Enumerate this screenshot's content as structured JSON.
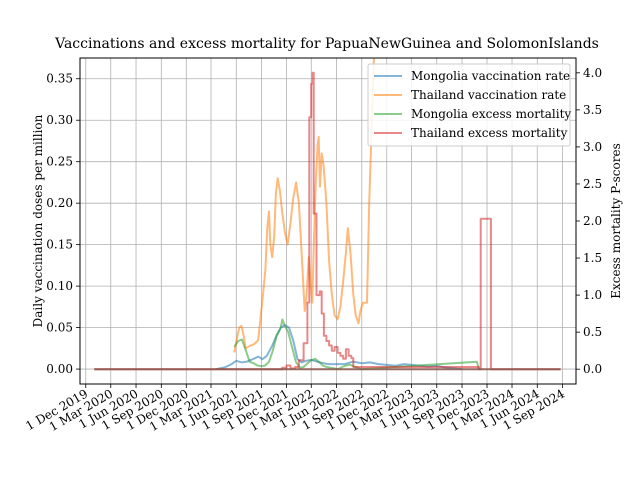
{
  "chart_data": {
    "type": "line",
    "title": "Vaccinations and excess mortality for PapuaNewGuinea and SolomonIslands",
    "ylabel_left": "Daily vaccination doses per million",
    "ylabel_right": "Excess mortality P-scores",
    "ylim_left": [
      -0.018,
      0.375
    ],
    "ylim_right": [
      -0.2,
      4.2
    ],
    "xlim": [
      "2019-11-10",
      "2024-10-20"
    ],
    "grid": true,
    "legend_position": "top-right",
    "x_ticks": [
      {
        "date": "2019-12-01",
        "label": "1 Dec 2019"
      },
      {
        "date": "2020-03-01",
        "label": "1 Mar 2020"
      },
      {
        "date": "2020-06-01",
        "label": "1 Jun 2020"
      },
      {
        "date": "2020-09-01",
        "label": "1 Sep 2020"
      },
      {
        "date": "2020-12-01",
        "label": "1 Dec 2020"
      },
      {
        "date": "2021-03-01",
        "label": "1 Mar 2021"
      },
      {
        "date": "2021-06-01",
        "label": "1 Jun 2021"
      },
      {
        "date": "2021-09-01",
        "label": "1 Sep 2021"
      },
      {
        "date": "2021-12-01",
        "label": "1 Dec 2021"
      },
      {
        "date": "2022-03-01",
        "label": "1 Mar 2022"
      },
      {
        "date": "2022-06-01",
        "label": "1 Jun 2022"
      },
      {
        "date": "2022-09-01",
        "label": "1 Sep 2022"
      },
      {
        "date": "2022-12-01",
        "label": "1 Dec 2022"
      },
      {
        "date": "2023-03-01",
        "label": "1 Mar 2023"
      },
      {
        "date": "2023-06-01",
        "label": "1 Jun 2023"
      },
      {
        "date": "2023-09-01",
        "label": "1 Sep 2023"
      },
      {
        "date": "2023-12-01",
        "label": "1 Dec 2023"
      },
      {
        "date": "2024-03-01",
        "label": "1 Mar 2024"
      },
      {
        "date": "2024-06-01",
        "label": "1 Jun 2024"
      },
      {
        "date": "2024-09-01",
        "label": "1 Sep 2024"
      }
    ],
    "y_ticks_left": [
      {
        "value": 0.0,
        "label": "0.00"
      },
      {
        "value": 0.05,
        "label": "0.05"
      },
      {
        "value": 0.1,
        "label": "0.10"
      },
      {
        "value": 0.15,
        "label": "0.15"
      },
      {
        "value": 0.2,
        "label": "0.20"
      },
      {
        "value": 0.25,
        "label": "0.25"
      },
      {
        "value": 0.3,
        "label": "0.30"
      },
      {
        "value": 0.35,
        "label": "0.35"
      }
    ],
    "y_ticks_right": [
      {
        "value": 0.0,
        "label": "0.0"
      },
      {
        "value": 0.5,
        "label": "0.5"
      },
      {
        "value": 1.0,
        "label": "1.0"
      },
      {
        "value": 1.5,
        "label": "1.5"
      },
      {
        "value": 2.0,
        "label": "2.0"
      },
      {
        "value": 2.5,
        "label": "2.5"
      },
      {
        "value": 3.0,
        "label": "3.0"
      },
      {
        "value": 3.5,
        "label": "3.5"
      },
      {
        "value": 4.0,
        "label": "4.0"
      }
    ],
    "series": [
      {
        "name": "Mongolia vaccination rate",
        "axis": "left",
        "color": "#1f77b4",
        "points": [
          [
            "2021-03-20",
            0.0
          ],
          [
            "2021-04-20",
            0.002
          ],
          [
            "2021-05-15",
            0.006
          ],
          [
            "2021-06-01",
            0.01
          ],
          [
            "2021-06-20",
            0.008
          ],
          [
            "2021-07-10",
            0.009
          ],
          [
            "2021-08-01",
            0.012
          ],
          [
            "2021-08-20",
            0.015
          ],
          [
            "2021-09-05",
            0.012
          ],
          [
            "2021-09-20",
            0.016
          ],
          [
            "2021-10-10",
            0.028
          ],
          [
            "2021-10-25",
            0.04
          ],
          [
            "2021-11-10",
            0.05
          ],
          [
            "2021-11-25",
            0.053
          ],
          [
            "2021-12-10",
            0.05
          ],
          [
            "2021-12-25",
            0.035
          ],
          [
            "2022-01-10",
            0.012
          ],
          [
            "2022-01-25",
            0.008
          ],
          [
            "2022-02-10",
            0.01
          ],
          [
            "2022-03-01",
            0.011
          ],
          [
            "2022-04-01",
            0.008
          ],
          [
            "2022-05-01",
            0.006
          ],
          [
            "2022-06-01",
            0.006
          ],
          [
            "2022-07-01",
            0.006
          ],
          [
            "2022-08-01",
            0.009
          ],
          [
            "2022-09-01",
            0.007
          ],
          [
            "2022-10-01",
            0.008
          ],
          [
            "2022-11-01",
            0.006
          ],
          [
            "2022-12-01",
            0.005
          ],
          [
            "2023-01-01",
            0.004
          ],
          [
            "2023-02-01",
            0.006
          ],
          [
            "2023-03-01",
            0.005
          ],
          [
            "2023-04-01",
            0.004
          ],
          [
            "2023-05-01",
            0.003
          ],
          [
            "2023-06-01",
            0.004
          ],
          [
            "2023-07-01",
            0.002
          ],
          [
            "2023-08-01",
            0.001
          ],
          [
            "2023-09-01",
            0.0
          ]
        ]
      },
      {
        "name": "Thailand vaccination rate",
        "axis": "left",
        "color": "#ff7f0e",
        "points": [
          [
            "2021-05-25",
            0.02
          ],
          [
            "2021-06-05",
            0.04
          ],
          [
            "2021-06-12",
            0.05
          ],
          [
            "2021-06-20",
            0.052
          ],
          [
            "2021-06-28",
            0.04
          ],
          [
            "2021-07-05",
            0.025
          ],
          [
            "2021-07-20",
            0.028
          ],
          [
            "2021-08-05",
            0.03
          ],
          [
            "2021-08-20",
            0.035
          ],
          [
            "2021-09-05",
            0.085
          ],
          [
            "2021-09-15",
            0.12
          ],
          [
            "2021-09-22",
            0.17
          ],
          [
            "2021-09-28",
            0.19
          ],
          [
            "2021-10-03",
            0.15
          ],
          [
            "2021-10-10",
            0.135
          ],
          [
            "2021-10-17",
            0.16
          ],
          [
            "2021-10-23",
            0.21
          ],
          [
            "2021-10-30",
            0.23
          ],
          [
            "2021-11-07",
            0.215
          ],
          [
            "2021-11-15",
            0.19
          ],
          [
            "2021-11-25",
            0.165
          ],
          [
            "2021-12-05",
            0.15
          ],
          [
            "2021-12-15",
            0.175
          ],
          [
            "2021-12-25",
            0.205
          ],
          [
            "2022-01-05",
            0.225
          ],
          [
            "2022-01-15",
            0.2
          ],
          [
            "2022-01-25",
            0.14
          ],
          [
            "2022-02-05",
            0.07
          ],
          [
            "2022-02-12",
            0.09
          ],
          [
            "2022-02-20",
            0.135
          ],
          [
            "2022-02-27",
            0.1
          ],
          [
            "2022-03-05",
            0.08
          ],
          [
            "2022-03-10",
            0.145
          ],
          [
            "2022-03-17",
            0.22
          ],
          [
            "2022-03-24",
            0.27
          ],
          [
            "2022-03-28",
            0.28
          ],
          [
            "2022-04-02",
            0.22
          ],
          [
            "2022-04-08",
            0.26
          ],
          [
            "2022-04-15",
            0.245
          ],
          [
            "2022-04-25",
            0.2
          ],
          [
            "2022-05-05",
            0.13
          ],
          [
            "2022-05-15",
            0.09
          ],
          [
            "2022-05-25",
            0.065
          ],
          [
            "2022-06-05",
            0.06
          ],
          [
            "2022-06-15",
            0.075
          ],
          [
            "2022-06-25",
            0.105
          ],
          [
            "2022-07-05",
            0.14
          ],
          [
            "2022-07-12",
            0.17
          ],
          [
            "2022-07-22",
            0.14
          ],
          [
            "2022-08-01",
            0.09
          ],
          [
            "2022-08-10",
            0.065
          ],
          [
            "2022-08-20",
            0.055
          ],
          [
            "2022-08-27",
            0.07
          ],
          [
            "2022-09-05",
            0.08
          ],
          [
            "2022-09-20",
            0.08
          ],
          [
            "2022-09-28",
            0.2
          ],
          [
            "2022-10-08",
            0.3
          ],
          [
            "2022-10-15",
            0.375
          ]
        ]
      },
      {
        "name": "Mongolia excess mortality",
        "axis": "right",
        "color": "#2ca02c",
        "points": [
          [
            "2021-05-25",
            0.3
          ],
          [
            "2021-06-08",
            0.38
          ],
          [
            "2021-06-22",
            0.4
          ],
          [
            "2021-07-06",
            0.25
          ],
          [
            "2021-07-20",
            0.1
          ],
          [
            "2021-08-03",
            0.08
          ],
          [
            "2021-08-17",
            0.05
          ],
          [
            "2021-08-31",
            0.04
          ],
          [
            "2021-09-14",
            0.05
          ],
          [
            "2021-09-28",
            0.1
          ],
          [
            "2021-10-12",
            0.25
          ],
          [
            "2021-10-26",
            0.45
          ],
          [
            "2021-11-09",
            0.55
          ],
          [
            "2021-11-16",
            0.67
          ],
          [
            "2021-11-23",
            0.6
          ],
          [
            "2021-12-07",
            0.5
          ],
          [
            "2021-12-21",
            0.3
          ],
          [
            "2022-01-04",
            0.1
          ],
          [
            "2022-01-18",
            0.02
          ],
          [
            "2022-02-01",
            0.03
          ],
          [
            "2022-02-15",
            0.08
          ],
          [
            "2022-03-01",
            0.12
          ],
          [
            "2022-03-15",
            0.14
          ],
          [
            "2022-03-29",
            0.1
          ],
          [
            "2022-04-12",
            0.05
          ],
          [
            "2022-04-26",
            0.03
          ],
          [
            "2022-05-10",
            0.02
          ],
          [
            "2022-05-24",
            0.01
          ],
          [
            "2022-06-07",
            0.0
          ],
          [
            "2022-06-21",
            0.03
          ],
          [
            "2022-07-05",
            0.05
          ],
          [
            "2022-07-19",
            0.06
          ],
          [
            "2022-08-02",
            0.04
          ],
          [
            "2022-08-16",
            0.02
          ],
          [
            "2022-08-30",
            0.0
          ],
          [
            "2023-10-25",
            0.1
          ],
          [
            "2023-11-01",
            0.0
          ]
        ]
      },
      {
        "name": "Thailand excess mortality",
        "axis": "right",
        "color": "#d62728",
        "step": true,
        "points": [
          [
            "2020-01-01",
            0.0
          ],
          [
            "2021-11-01",
            0.0
          ],
          [
            "2021-11-15",
            0.02
          ],
          [
            "2021-12-01",
            0.05
          ],
          [
            "2021-12-15",
            0.01
          ],
          [
            "2022-01-01",
            0.03
          ],
          [
            "2022-01-15",
            0.12
          ],
          [
            "2022-02-01",
            0.35
          ],
          [
            "2022-02-15",
            0.9
          ],
          [
            "2022-02-22",
            3.4
          ],
          [
            "2022-03-01",
            3.85
          ],
          [
            "2022-03-06",
            4.0
          ],
          [
            "2022-03-10",
            2.1
          ],
          [
            "2022-03-20",
            1.0
          ],
          [
            "2022-04-01",
            1.05
          ],
          [
            "2022-04-08",
            0.75
          ],
          [
            "2022-04-16",
            0.45
          ],
          [
            "2022-04-25",
            0.38
          ],
          [
            "2022-05-05",
            0.32
          ],
          [
            "2022-05-15",
            0.25
          ],
          [
            "2022-05-25",
            0.3
          ],
          [
            "2022-06-05",
            0.22
          ],
          [
            "2022-06-15",
            0.18
          ],
          [
            "2022-06-25",
            0.14
          ],
          [
            "2022-07-05",
            0.27
          ],
          [
            "2022-07-15",
            0.18
          ],
          [
            "2022-07-25",
            0.15
          ],
          [
            "2022-08-01",
            0.03
          ],
          [
            "2023-11-01",
            0.0
          ],
          [
            "2023-11-08",
            2.03
          ],
          [
            "2023-12-12",
            2.03
          ],
          [
            "2023-12-15",
            0.0
          ],
          [
            "2024-08-25",
            0.0
          ]
        ]
      },
      {
        "name": "",
        "axis": "right",
        "color": "#8c564b",
        "points": [
          [
            "2020-01-01",
            0.0
          ],
          [
            "2024-08-25",
            0.0
          ]
        ]
      }
    ]
  }
}
